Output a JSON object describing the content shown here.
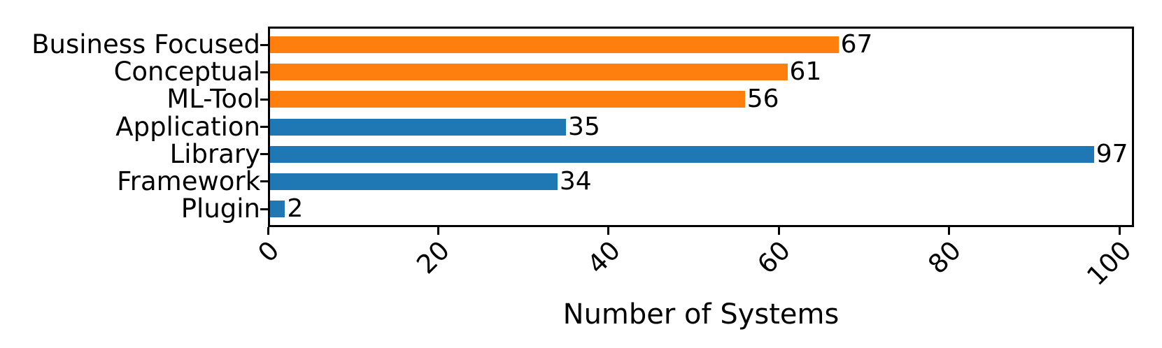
{
  "chart_data": {
    "type": "bar",
    "orientation": "horizontal",
    "title": "",
    "xlabel": "Number of Systems",
    "ylabel": "",
    "categories": [
      "Business Focused",
      "Conceptual",
      "ML-Tool",
      "Application",
      "Library",
      "Framework",
      "Plugin"
    ],
    "values": [
      67,
      61,
      56,
      35,
      97,
      34,
      2
    ],
    "value_labels": [
      "67",
      "61",
      "56",
      "35",
      "97",
      "34",
      "2"
    ],
    "bar_colors": [
      "#ff7f0e",
      "#ff7f0e",
      "#ff7f0e",
      "#1f77b4",
      "#1f77b4",
      "#1f77b4",
      "#1f77b4"
    ],
    "xticks": [
      "0",
      "20",
      "40",
      "60",
      "80",
      "100"
    ],
    "xtick_values": [
      0,
      20,
      40,
      60,
      80,
      100
    ],
    "xlim": [
      0,
      101.7
    ],
    "grid": false,
    "legend_position": "none",
    "tick_label_rotation": 45
  },
  "colors": {
    "orange_group": "#ff7f0e",
    "blue_group": "#1f77b4",
    "axis_frame": "#000000",
    "background": "#ffffff",
    "text": "#000000"
  }
}
